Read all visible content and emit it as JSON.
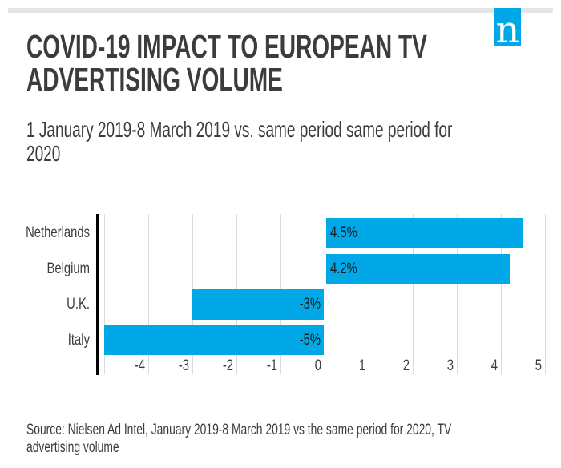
{
  "header": {
    "top_bar_color": "#e3e6e8",
    "logo": {
      "letter": "n",
      "bg_color": "#00a8e8",
      "text_color": "#ffffff"
    },
    "title_lines": [
      "COVID-19 IMPACT TO EUROPEAN TV",
      "ADVERTISING VOLUME"
    ],
    "subtitle_lines": [
      "1 January 2019-8 March 2019 vs. same period same period for",
      "2020"
    ]
  },
  "chart_data": {
    "type": "bar",
    "orientation": "horizontal",
    "title": "COVID-19 IMPACT TO EUROPEAN TV ADVERTISING VOLUME",
    "categories": [
      "Netherlands",
      "Belgium",
      "U.K.",
      "Italy"
    ],
    "values": [
      4.5,
      4.2,
      -3,
      -5
    ],
    "value_labels": [
      "4.5%",
      "4.2%",
      "-3%",
      "-5%"
    ],
    "xticks": [
      "-4",
      "-3",
      "-2",
      "-1",
      "0",
      "1",
      "2",
      "3",
      "4",
      "5"
    ],
    "xtick_values": [
      -4,
      -3,
      -2,
      -1,
      0,
      1,
      2,
      3,
      4,
      5
    ],
    "gridline_values": [
      -5,
      -4,
      -3,
      -2,
      -1,
      0,
      1,
      2,
      3,
      4,
      5
    ],
    "xlim": [
      -5.2,
      5
    ],
    "grid": "vertical",
    "legend": "none",
    "bar_color": "#00a8e8",
    "grid_color": "#d8dbde",
    "axis_line_color": "#000000",
    "label_color": "#1a1a1a"
  },
  "footer": {
    "source_lines": [
      "Source: Nielsen Ad Intel, January 2019-8 March 2019 vs the same period for 2020, TV",
      "advertising volume"
    ]
  }
}
